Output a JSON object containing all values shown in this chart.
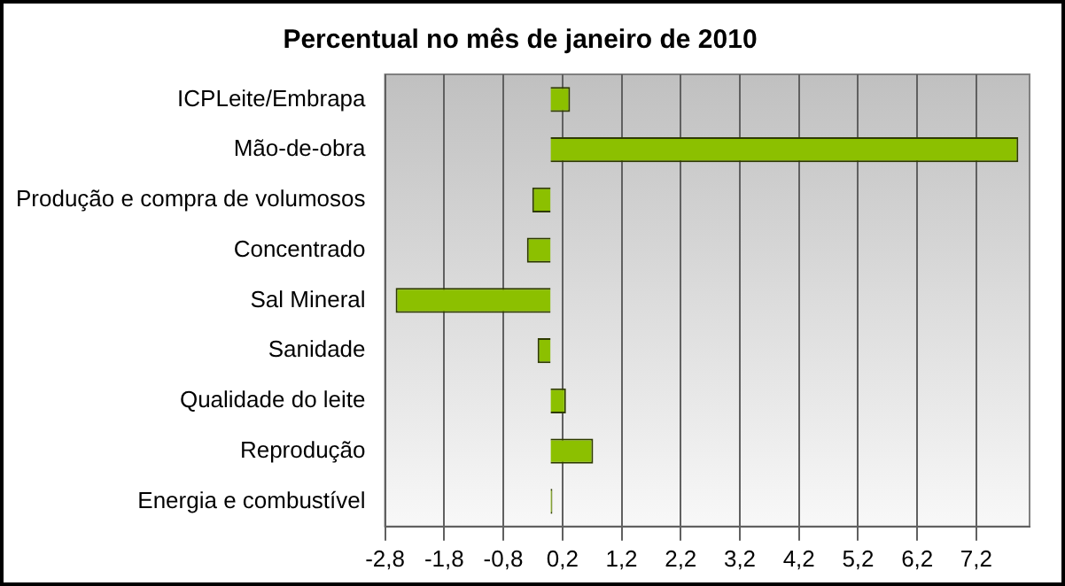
{
  "chart_data": {
    "type": "bar",
    "orientation": "horizontal",
    "title": "Percentual no mês de janeiro de 2010",
    "categories": [
      "ICPLeite/Embrapa",
      "Mão-de-obra",
      "Produção e compra de volumosos",
      "Concentrado",
      "Sal Mineral",
      "Sanidade",
      "Qualidade do leite",
      "Reprodução",
      "Energia e combustível"
    ],
    "values": [
      0.33,
      7.91,
      -0.31,
      -0.4,
      -2.62,
      -0.22,
      0.26,
      0.72,
      0.03
    ],
    "color": "#8cc000",
    "xlim": [
      -2.8,
      8.1
    ],
    "xticks": [
      {
        "value": -2.8,
        "label": "-2,8"
      },
      {
        "value": -1.8,
        "label": "-1,8"
      },
      {
        "value": -0.8,
        "label": "-0,8"
      },
      {
        "value": 0.2,
        "label": "0,2"
      },
      {
        "value": 1.2,
        "label": "1,2"
      },
      {
        "value": 2.2,
        "label": "2,2"
      },
      {
        "value": 3.2,
        "label": "3,2"
      },
      {
        "value": 4.2,
        "label": "4,2"
      },
      {
        "value": 5.2,
        "label": "5,2"
      },
      {
        "value": 6.2,
        "label": "6,2"
      },
      {
        "value": 7.2,
        "label": "7,2"
      }
    ],
    "grid": "x"
  }
}
